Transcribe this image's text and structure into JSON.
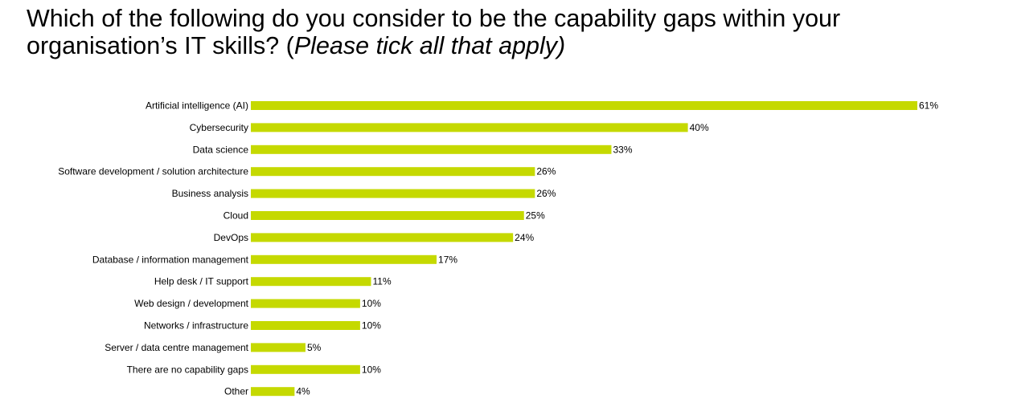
{
  "title": {
    "main": "Which of the following do you consider to be the capability gaps within your organisation’s IT skills?",
    "open_paren": " (",
    "instruction": "Please tick all that apply)"
  },
  "chart_data": {
    "type": "bar",
    "orientation": "horizontal",
    "title": "Which of the following do you consider to be the capability gaps within your organisation’s IT skills? (Please tick all that apply)",
    "categories": [
      "Artificial intelligence (AI)",
      "Cybersecurity",
      "Data science",
      "Software development / solution architecture",
      "Business analysis",
      "Cloud",
      "DevOps",
      "Database / information management",
      "Help desk / IT support",
      "Web design / development",
      "Networks / infrastructure",
      "Server / data centre management",
      "There are no capability gaps",
      "Other"
    ],
    "values": [
      61,
      40,
      33,
      26,
      26,
      25,
      24,
      17,
      11,
      10,
      10,
      5,
      10,
      4
    ],
    "value_suffix": "%",
    "grid": false,
    "legend": "none",
    "xlim": [
      0,
      61
    ],
    "bar_color": "#c5d900"
  }
}
